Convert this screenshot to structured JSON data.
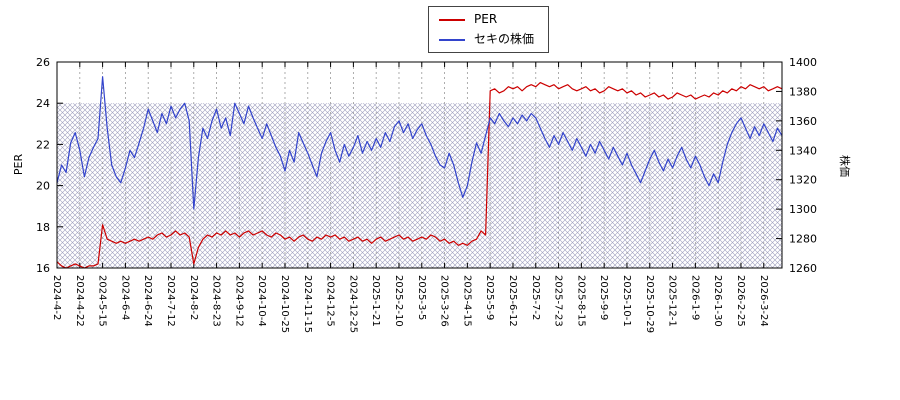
{
  "legend": {
    "items": [
      {
        "label": "PER"
      },
      {
        "label": "セキの株価"
      }
    ]
  },
  "chart_data": {
    "type": "line",
    "title": "",
    "x_tick_step": 5,
    "x_tick_labels": [
      "2024-4-2",
      "2024-4-22",
      "2024-5-15",
      "2024-6-4",
      "2024-6-24",
      "2024-7-12",
      "2024-8-2",
      "2024-8-23",
      "2024-9-12",
      "2024-10-4",
      "2024-10-25",
      "2024-11-15",
      "2024-12-5",
      "2024-12-25",
      "2025-1-21",
      "2025-2-10",
      "2025-3-5",
      "2025-3-26",
      "2025-4-15",
      "2025-5-9",
      "2025-6-12",
      "2025-7-2",
      "2025-7-23",
      "2025-8-15",
      "2025-9-9",
      "2025-10-1",
      "2025-10-29",
      "2025-12-1",
      "2026-1-9",
      "2026-1-30",
      "2026-2-25",
      "2026-3-24"
    ],
    "axes": {
      "left": {
        "title": "PER",
        "min": 16,
        "max": 26,
        "ticks": [
          16,
          18,
          20,
          22,
          24,
          26
        ]
      },
      "right": {
        "title": "株価",
        "min": 1260,
        "max": 1400,
        "ticks": [
          1260,
          1280,
          1300,
          1320,
          1340,
          1360,
          1380,
          1400
        ]
      }
    },
    "grid": {
      "vertical_dashed": true,
      "color": "#999999"
    },
    "hatch_band": {
      "axis": "left",
      "from": 16,
      "to": 24,
      "color": "#9e9ebe"
    },
    "series": [
      {
        "name": "PER",
        "axis": "left",
        "color": "#cc0000",
        "values": [
          16.3,
          16.1,
          16.0,
          16.1,
          16.2,
          16.1,
          16.0,
          16.1,
          16.1,
          16.2,
          18.1,
          17.4,
          17.3,
          17.2,
          17.3,
          17.2,
          17.3,
          17.4,
          17.3,
          17.4,
          17.5,
          17.4,
          17.6,
          17.7,
          17.5,
          17.6,
          17.8,
          17.6,
          17.7,
          17.5,
          16.2,
          17.0,
          17.4,
          17.6,
          17.5,
          17.7,
          17.6,
          17.8,
          17.6,
          17.7,
          17.5,
          17.7,
          17.8,
          17.6,
          17.7,
          17.8,
          17.6,
          17.5,
          17.7,
          17.6,
          17.4,
          17.5,
          17.3,
          17.5,
          17.6,
          17.4,
          17.3,
          17.5,
          17.4,
          17.6,
          17.5,
          17.6,
          17.4,
          17.5,
          17.3,
          17.4,
          17.5,
          17.3,
          17.4,
          17.2,
          17.4,
          17.5,
          17.3,
          17.4,
          17.5,
          17.6,
          17.4,
          17.5,
          17.3,
          17.4,
          17.5,
          17.4,
          17.6,
          17.5,
          17.3,
          17.4,
          17.2,
          17.3,
          17.1,
          17.2,
          17.1,
          17.3,
          17.4,
          17.8,
          17.6,
          24.6,
          24.7,
          24.5,
          24.6,
          24.8,
          24.7,
          24.8,
          24.6,
          24.8,
          24.9,
          24.8,
          25.0,
          24.9,
          24.8,
          24.9,
          24.7,
          24.8,
          24.9,
          24.7,
          24.6,
          24.7,
          24.8,
          24.6,
          24.7,
          24.5,
          24.6,
          24.8,
          24.7,
          24.6,
          24.7,
          24.5,
          24.6,
          24.4,
          24.5,
          24.3,
          24.4,
          24.5,
          24.3,
          24.4,
          24.2,
          24.3,
          24.5,
          24.4,
          24.3,
          24.4,
          24.2,
          24.3,
          24.4,
          24.3,
          24.5,
          24.4,
          24.6,
          24.5,
          24.7,
          24.6,
          24.8,
          24.7,
          24.9,
          24.8,
          24.7,
          24.8,
          24.6,
          24.7,
          24.8,
          24.7
        ]
      },
      {
        "name": "セキの株価",
        "axis": "right",
        "color": "#3344cc",
        "values": [
          1318,
          1330,
          1325,
          1345,
          1352,
          1340,
          1322,
          1335,
          1342,
          1348,
          1390,
          1355,
          1330,
          1322,
          1318,
          1328,
          1340,
          1335,
          1345,
          1355,
          1368,
          1360,
          1352,
          1365,
          1358,
          1370,
          1362,
          1368,
          1372,
          1360,
          1300,
          1335,
          1355,
          1348,
          1360,
          1368,
          1355,
          1362,
          1350,
          1372,
          1365,
          1358,
          1370,
          1362,
          1355,
          1348,
          1358,
          1350,
          1342,
          1336,
          1326,
          1340,
          1332,
          1352,
          1345,
          1338,
          1330,
          1322,
          1338,
          1346,
          1352,
          1340,
          1332,
          1344,
          1336,
          1342,
          1350,
          1338,
          1346,
          1340,
          1348,
          1342,
          1352,
          1346,
          1356,
          1360,
          1352,
          1358,
          1348,
          1354,
          1358,
          1350,
          1344,
          1336,
          1330,
          1328,
          1338,
          1330,
          1318,
          1308,
          1316,
          1332,
          1345,
          1338,
          1350,
          1362,
          1358,
          1365,
          1360,
          1356,
          1362,
          1358,
          1364,
          1360,
          1365,
          1362,
          1355,
          1348,
          1342,
          1350,
          1344,
          1352,
          1346,
          1340,
          1348,
          1342,
          1336,
          1344,
          1338,
          1346,
          1340,
          1334,
          1342,
          1336,
          1330,
          1338,
          1330,
          1324,
          1318,
          1326,
          1334,
          1340,
          1332,
          1326,
          1334,
          1328,
          1336,
          1342,
          1334,
          1328,
          1336,
          1330,
          1322,
          1316,
          1324,
          1318,
          1332,
          1344,
          1352,
          1358,
          1362,
          1355,
          1348,
          1356,
          1350,
          1358,
          1352,
          1346,
          1355,
          1350
        ]
      }
    ]
  }
}
